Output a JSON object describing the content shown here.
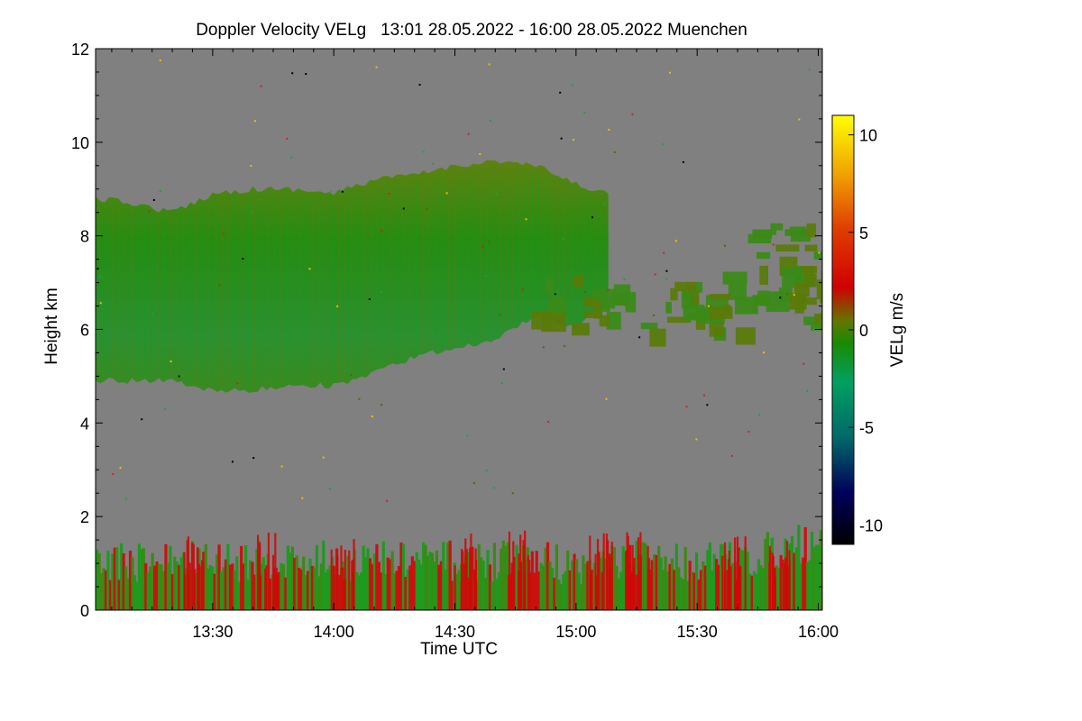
{
  "chart_data": {
    "type": "heatmap",
    "title": "Doppler Velocity VELg   13:01 28.05.2022 - 16:00 28.05.2022 Muenchen",
    "xlabel": "Time UTC",
    "ylabel": "Height km",
    "colorbar_label": "VELg m/s",
    "x_range_min": [
      781,
      961
    ],
    "x_ticks_min": [
      810,
      840,
      870,
      900,
      930,
      960
    ],
    "x_tick_labels": [
      "13:30",
      "14:00",
      "14:30",
      "15:00",
      "15:30",
      "16:00"
    ],
    "ylim": [
      0,
      12
    ],
    "y_ticks": [
      0,
      2,
      4,
      6,
      8,
      10,
      12
    ],
    "y_tick_labels": [
      "0",
      "2",
      "4",
      "6",
      "8",
      "10",
      "12"
    ],
    "clim": [
      -11,
      11
    ],
    "colorbar_ticks": [
      10,
      5,
      0,
      -5,
      -10
    ],
    "colorbar_tick_labels": [
      "10",
      "5",
      "0",
      "-5",
      "-10"
    ],
    "background_color": "#808080",
    "colormap": [
      "#000000",
      "#00005a",
      "#006a6a",
      "#00a060",
      "#1a8a00",
      "#607800",
      "#d00000",
      "#f06000",
      "#f0a000",
      "#ffff00"
    ],
    "upper_cloud": {
      "description_values": "cirrus layer, mostly -2 to 0 m/s",
      "top_km": [
        [
          781,
          8.8
        ],
        [
          790,
          8.7
        ],
        [
          800,
          8.5
        ],
        [
          810,
          8.9
        ],
        [
          820,
          9.0
        ],
        [
          830,
          9.0
        ],
        [
          840,
          8.9
        ],
        [
          850,
          9.2
        ],
        [
          860,
          9.3
        ],
        [
          870,
          9.5
        ],
        [
          880,
          9.6
        ],
        [
          890,
          9.5
        ],
        [
          900,
          9.1
        ],
        [
          908,
          8.9
        ]
      ],
      "base_km": [
        [
          781,
          4.9
        ],
        [
          790,
          4.9
        ],
        [
          800,
          4.9
        ],
        [
          810,
          4.7
        ],
        [
          820,
          4.7
        ],
        [
          830,
          4.8
        ],
        [
          840,
          4.8
        ],
        [
          848,
          5.0
        ],
        [
          860,
          5.4
        ],
        [
          870,
          5.6
        ],
        [
          880,
          5.8
        ],
        [
          890,
          6.3
        ],
        [
          900,
          6.0
        ],
        [
          908,
          6.6
        ]
      ],
      "fragments": [
        {
          "start_min": 885,
          "end_min": 940,
          "top_km": 7.2,
          "base_km": 6.0
        },
        {
          "start_min": 921,
          "end_min": 937,
          "top_km": 7.4,
          "base_km": 6.3
        },
        {
          "start_min": 940,
          "end_min": 954,
          "top_km": 8.3,
          "base_km": 6.3
        },
        {
          "start_min": 954,
          "end_min": 961,
          "top_km": 8.3,
          "base_km": 6.0
        }
      ]
    },
    "boundary_layer": {
      "description_values": "mixed updrafts/downdrafts, -3 to +4 m/s",
      "start_min": 781,
      "end_min": 961,
      "top_km": 1.6,
      "peak_km": 2.1
    }
  }
}
